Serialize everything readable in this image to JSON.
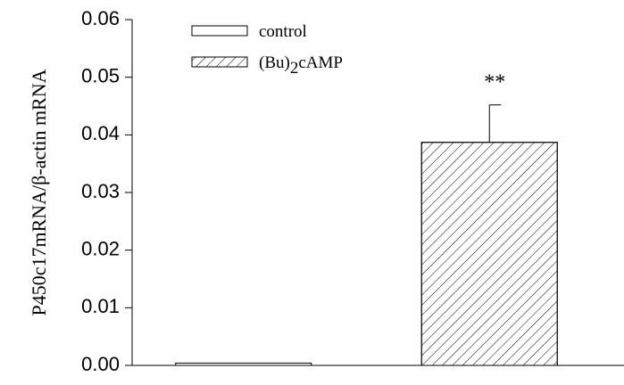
{
  "chart_data": {
    "type": "bar",
    "y_label": "P450c17mRNA/β-actin mRNA",
    "categories": [
      null,
      null
    ],
    "series": [
      {
        "name": "control",
        "color": "#ffffff",
        "hatch": false,
        "values": [
          0.0004,
          null
        ],
        "errors": [
          null,
          null
        ]
      },
      {
        "name": "(Bu)2cAMP",
        "color": "#ffffff",
        "hatch": true,
        "values": [
          null,
          0.0387
        ],
        "errors": [
          null,
          0.0065
        ]
      }
    ],
    "annotations": [
      {
        "text": "**",
        "series": 1,
        "index": 1
      }
    ],
    "ylim": [
      0,
      0.06
    ],
    "yticks": [
      {
        "value": 0,
        "label": "0.00"
      },
      0.01,
      0.02,
      0.03,
      0.04,
      0.05,
      0.06
    ],
    "legend": "top-left"
  }
}
